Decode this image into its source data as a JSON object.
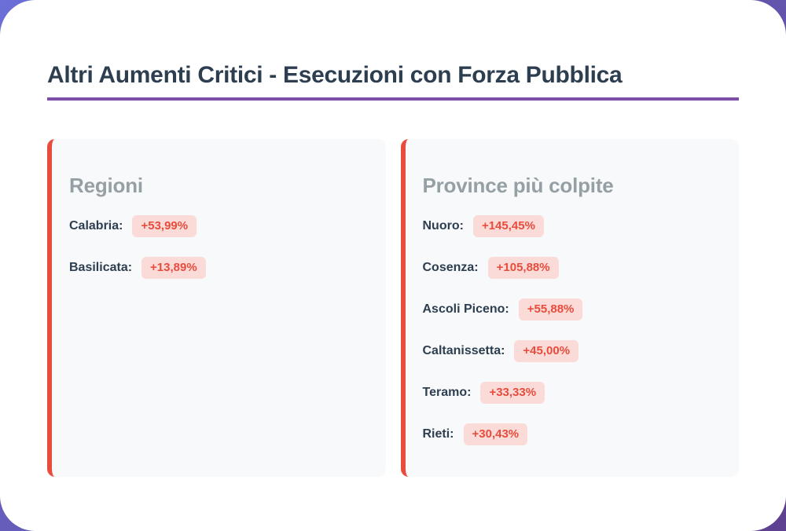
{
  "page": {
    "title": "Altri Aumenti Critici - Esecuzioni con Forza Pubblica"
  },
  "colors": {
    "background_gradient_start": "#6b6fd8",
    "background_gradient_end": "#5e4190",
    "card_background": "#ffffff",
    "title_text": "#2c3e50",
    "title_underline": "#7b4fa8",
    "panel_background": "#f8f9fa",
    "panel_accent_border": "#e74c3c",
    "panel_header_text": "#95a0a5",
    "badge_text": "#e74c3c",
    "badge_background": "#fadbd8"
  },
  "panels": [
    {
      "header": "Regioni",
      "items": [
        {
          "label": "Calabria:",
          "value": "+53,99%"
        },
        {
          "label": "Basilicata:",
          "value": "+13,89%"
        }
      ]
    },
    {
      "header": "Province più colpite",
      "items": [
        {
          "label": "Nuoro:",
          "value": "+145,45%"
        },
        {
          "label": "Cosenza:",
          "value": "+105,88%"
        },
        {
          "label": "Ascoli Piceno:",
          "value": "+55,88%"
        },
        {
          "label": "Caltanissetta:",
          "value": "+45,00%"
        },
        {
          "label": "Teramo:",
          "value": "+33,33%"
        },
        {
          "label": "Rieti:",
          "value": "+30,43%"
        }
      ]
    }
  ]
}
